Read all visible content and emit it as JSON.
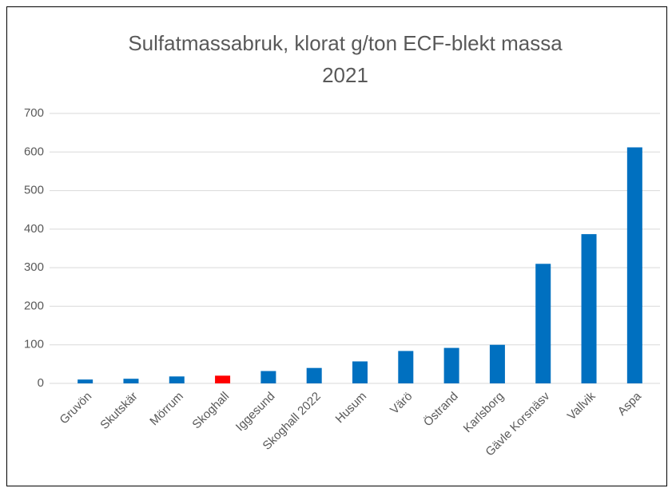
{
  "chart_data": {
    "type": "bar",
    "title": [
      "Sulfatmassabruk, klorat g/ton ECF-blekt massa",
      "2021"
    ],
    "categories": [
      "Gruvön",
      "Skutskär",
      "Mörrum",
      "Skoghall",
      "Iggesund",
      "Skoghall 2022",
      "Husum",
      "Värö",
      "Östrand",
      "Karlsborg",
      "Gävle Korsnäsv",
      "Vallvik",
      "Aspa"
    ],
    "values": [
      10,
      12,
      18,
      20,
      32,
      40,
      57,
      84,
      92,
      100,
      310,
      387,
      612
    ],
    "colors": [
      "#0070c0",
      "#0070c0",
      "#0070c0",
      "#ff0000",
      "#0070c0",
      "#0070c0",
      "#0070c0",
      "#0070c0",
      "#0070c0",
      "#0070c0",
      "#0070c0",
      "#0070c0",
      "#0070c0"
    ],
    "ylim": [
      0,
      700
    ],
    "yticks": [
      0,
      100,
      200,
      300,
      400,
      500,
      600,
      700
    ],
    "grid": true
  }
}
